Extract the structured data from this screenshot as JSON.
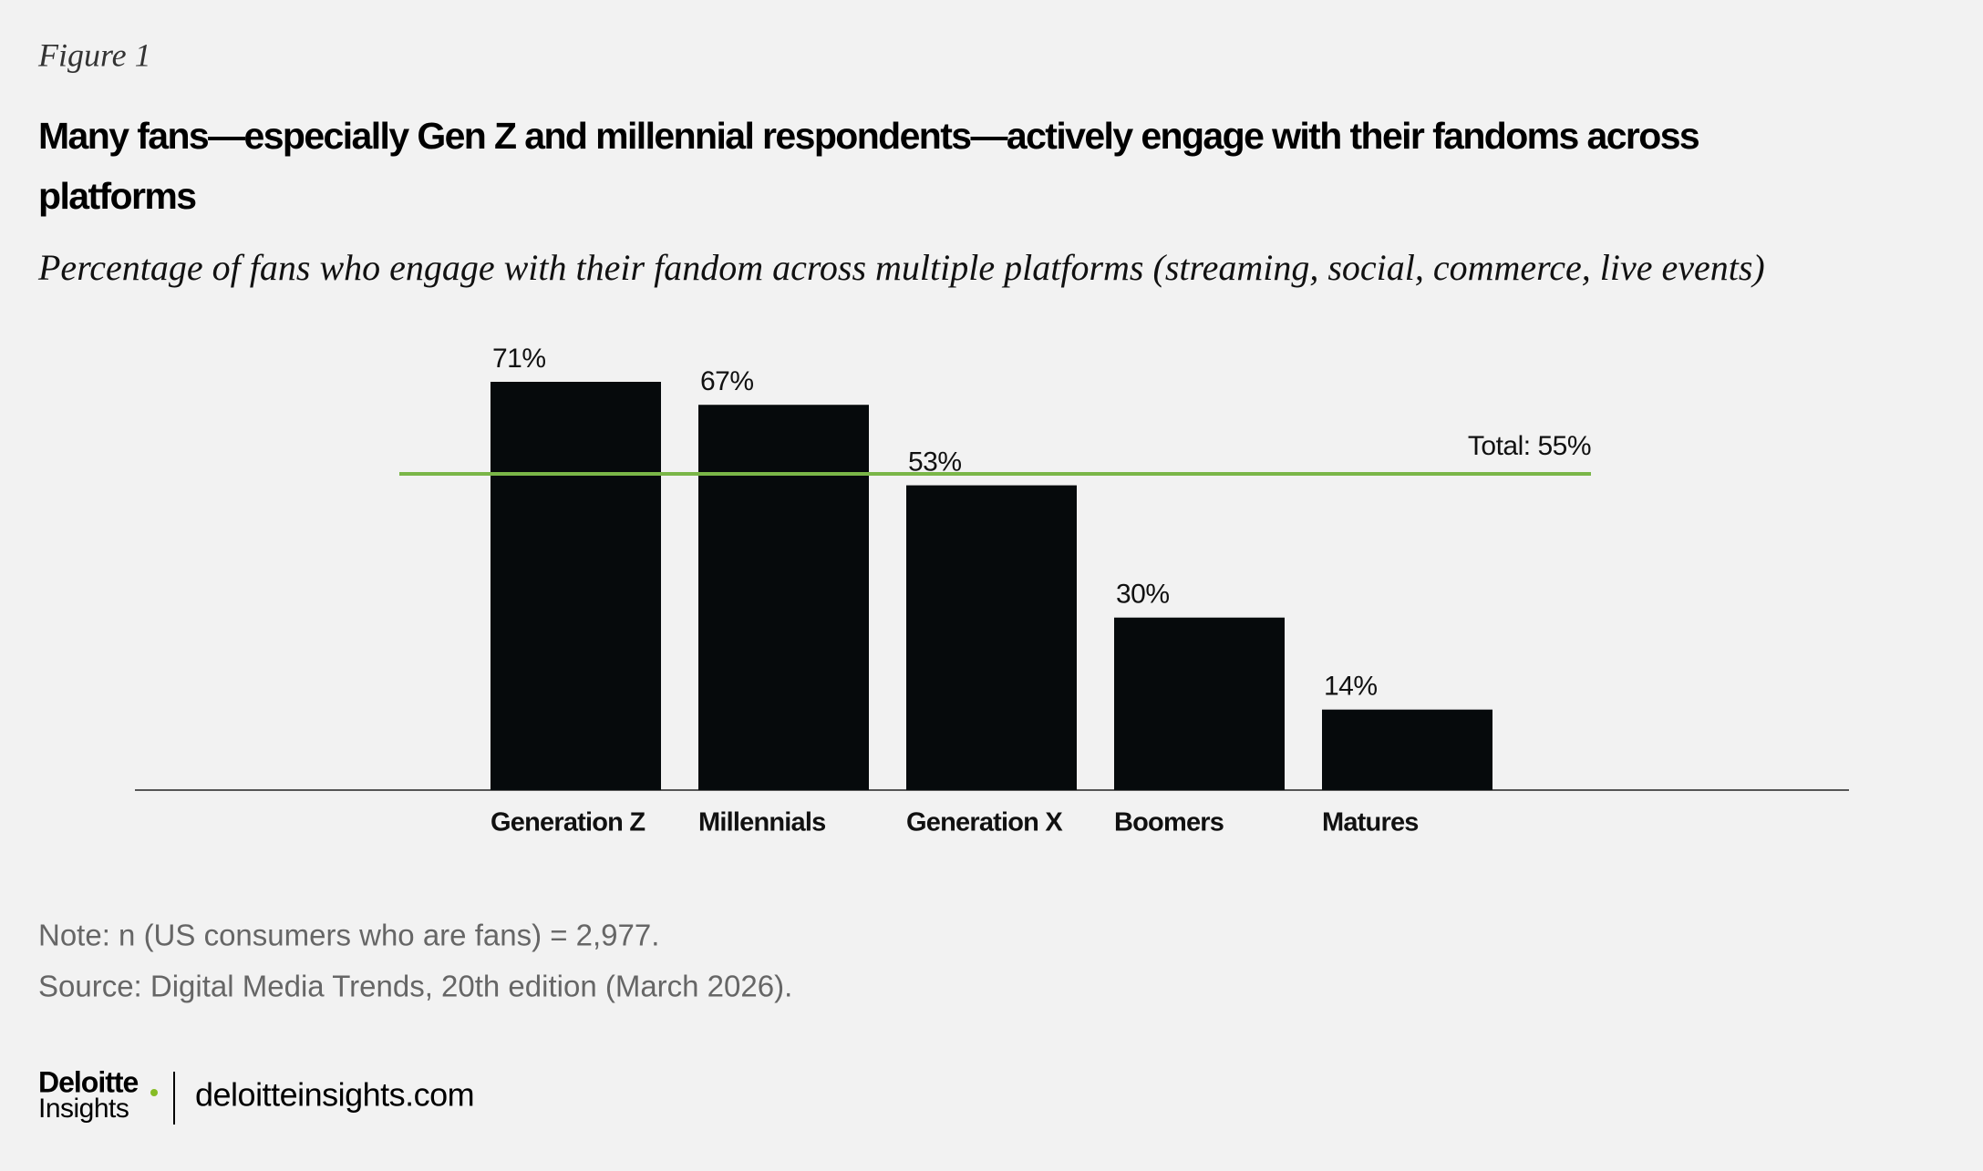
{
  "chart_data": {
    "type": "bar",
    "figure_label": "Figure 1",
    "title": "Many fans—especially Gen Z and millennial respondents—actively engage with their fandoms across platforms",
    "subtitle": "Percentage of fans who engage with their fandom across multiple platforms (streaming, social, commerce, live events)",
    "categories": [
      "Generation Z",
      "Millennials",
      "Generation X",
      "Boomers",
      "Matures"
    ],
    "values": [
      71,
      67,
      53,
      30,
      14
    ],
    "value_labels": [
      "71%",
      "67%",
      "53%",
      "30%",
      "14%"
    ],
    "color": "#060a0c",
    "reference_line": {
      "value": 55,
      "label": "Total: 55%",
      "color": "#7ab648"
    },
    "note": "Note: n (US consumers who are fans) = 2,977.",
    "source": "Source: Digital Media Trends, 20th edition (March 2026)."
  },
  "footer": {
    "brand": "Deloitte",
    "brand_sub": "Insights",
    "url": "deloitteinsights.com"
  }
}
